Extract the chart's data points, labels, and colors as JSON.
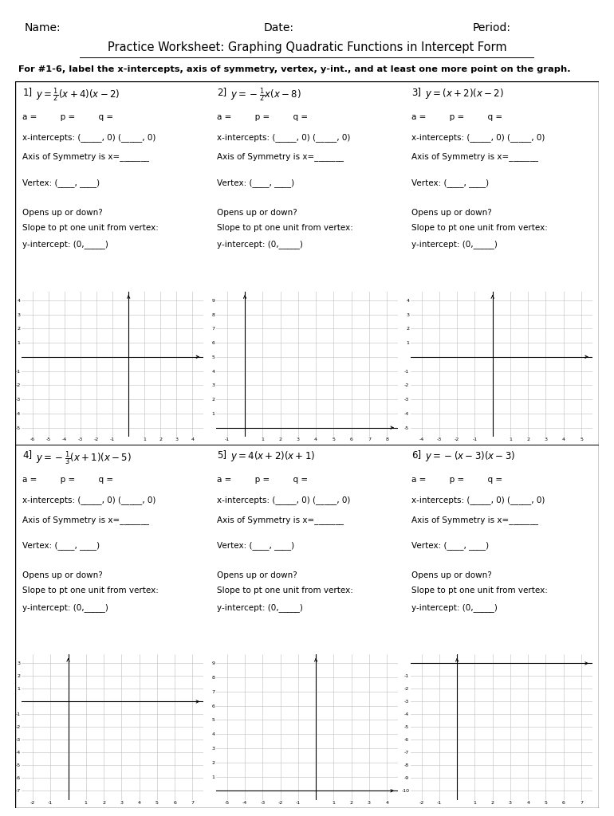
{
  "title": "Practice Worksheet: Graphing Quadratic Functions in Intercept Form",
  "instruction": "For #1-6, label the x-intercepts, axis of symmetry, vertex, y-int., and at least one more point on the graph.",
  "header_labels": [
    "Name:",
    "Date:",
    "Period:"
  ],
  "problems": [
    {
      "num": "1",
      "equation": "$y = \\frac{1}{2}(x + 4)(x - 2)$",
      "xmin": -6,
      "xmax": 4,
      "ymin": -5,
      "ymax": 4,
      "xticks": [
        -6,
        -5,
        -4,
        -3,
        -2,
        -1,
        0,
        1,
        2,
        3,
        4
      ],
      "yticks": [
        -5,
        -4,
        -3,
        -2,
        -1,
        0,
        1,
        2,
        3,
        4
      ]
    },
    {
      "num": "2",
      "equation": "$y = -\\frac{1}{2}x(x - 8)$",
      "xmin": -1,
      "xmax": 8,
      "ymin": 0,
      "ymax": 9,
      "xticks": [
        -1,
        0,
        1,
        2,
        3,
        4,
        5,
        6,
        7,
        8
      ],
      "yticks": [
        0,
        1,
        2,
        3,
        4,
        5,
        6,
        7,
        8,
        9
      ]
    },
    {
      "num": "3",
      "equation": "$y = (x + 2)(x - 2)$",
      "xmin": -4,
      "xmax": 5,
      "ymin": -5,
      "ymax": 4,
      "xticks": [
        -4,
        -3,
        -2,
        -1,
        0,
        1,
        2,
        3,
        4,
        5
      ],
      "yticks": [
        -5,
        -4,
        -3,
        -2,
        -1,
        0,
        1,
        2,
        3,
        4
      ]
    },
    {
      "num": "4",
      "equation": "$y = -\\frac{1}{3}(x + 1)(x - 5)$",
      "xmin": -2,
      "xmax": 7,
      "ymin": -7,
      "ymax": 3,
      "xticks": [
        -2,
        -1,
        0,
        1,
        2,
        3,
        4,
        5,
        6,
        7
      ],
      "yticks": [
        -7,
        -6,
        -5,
        -4,
        -3,
        -2,
        -1,
        0,
        1,
        2,
        3
      ]
    },
    {
      "num": "5",
      "equation": "$y = 4(x + 2)(x + 1)$",
      "xmin": -5,
      "xmax": 4,
      "ymin": 0,
      "ymax": 9,
      "xticks": [
        -5,
        -4,
        -3,
        -2,
        -1,
        0,
        1,
        2,
        3,
        4
      ],
      "yticks": [
        0,
        1,
        2,
        3,
        4,
        5,
        6,
        7,
        8,
        9
      ]
    },
    {
      "num": "6",
      "equation": "$y = -(x - 3)(x - 3)$",
      "xmin": -2,
      "xmax": 7,
      "ymin": -10,
      "ymax": 0,
      "xticks": [
        -2,
        -1,
        0,
        1,
        2,
        3,
        4,
        5,
        6,
        7
      ],
      "yticks": [
        -10,
        -9,
        -8,
        -7,
        -6,
        -5,
        -4,
        -3,
        -2,
        -1,
        0
      ]
    }
  ],
  "bg_color": "#ffffff",
  "grid_color": "#bbbbbb",
  "text_color": "#000000"
}
